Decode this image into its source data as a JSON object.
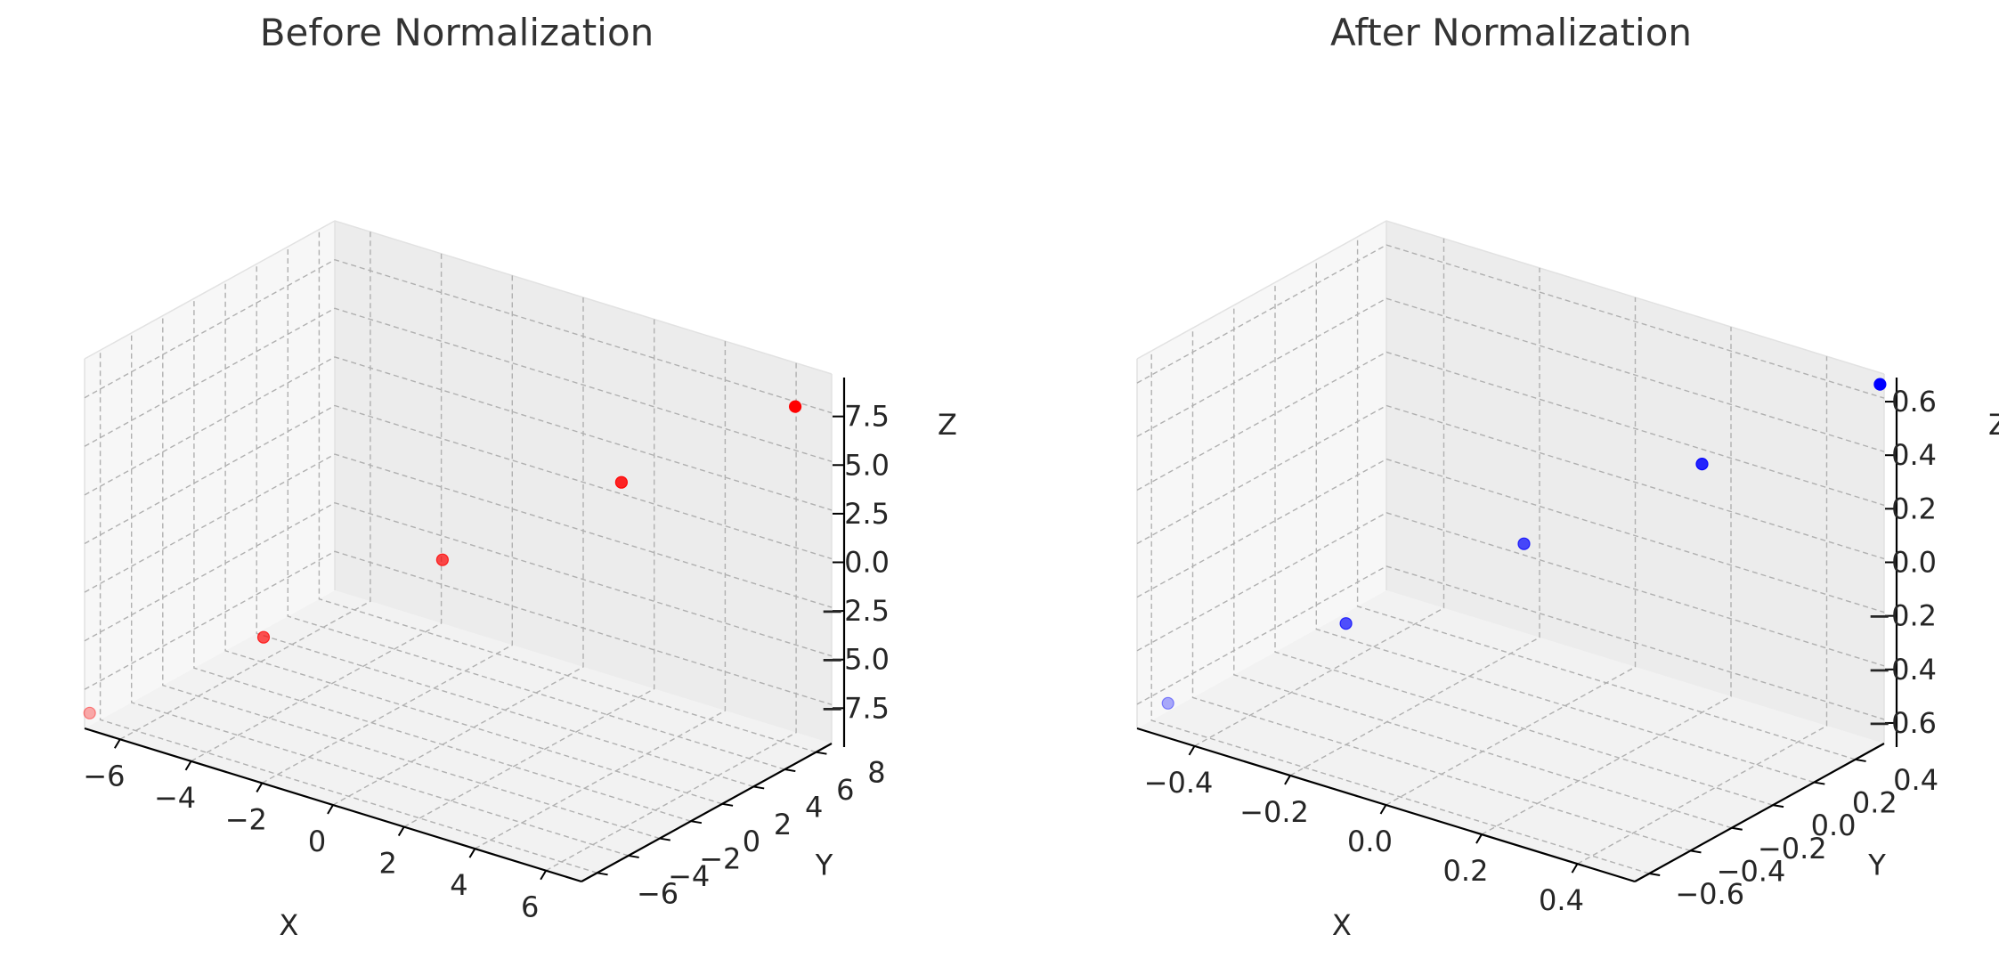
{
  "chart_data": [
    {
      "type": "scatter",
      "title": "Before Normalization",
      "xlabel": "X",
      "ylabel": "Y",
      "zlabel": "Z",
      "projection": "3d",
      "grid": true,
      "marker_color": "#ff0000",
      "x_ticks": [
        "−6",
        "−4",
        "−2",
        "0",
        "2",
        "4",
        "6"
      ],
      "y_ticks": [
        "−6",
        "−4",
        "−2",
        "0",
        "2",
        "4",
        "6",
        "8"
      ],
      "z_ticks": [
        "−7.5",
        "−5.0",
        "−2.5",
        "0.0",
        "2.5",
        "5.0",
        "7.5"
      ],
      "xlim": [
        -7,
        7
      ],
      "ylim": [
        -7,
        9
      ],
      "zlim": [
        -9.5,
        9.5
      ],
      "points": [
        {
          "x": -6.9,
          "y": -6.9,
          "z": -8.7
        },
        {
          "x": -3.5,
          "y": -3.5,
          "z": -4.4
        },
        {
          "x": 0,
          "y": 0,
          "z": 0
        },
        {
          "x": 3.5,
          "y": 3.5,
          "z": 4.4
        },
        {
          "x": 6.9,
          "y": 6.9,
          "z": 8.7
        }
      ]
    },
    {
      "type": "scatter",
      "title": "After Normalization",
      "xlabel": "X",
      "ylabel": "Y",
      "zlabel": "Z",
      "projection": "3d",
      "grid": true,
      "marker_color": "#0000ff",
      "x_ticks": [
        "−0.4",
        "−0.2",
        "0.0",
        "0.2",
        "0.4"
      ],
      "y_ticks": [
        "−0.6",
        "−0.4",
        "−0.2",
        "0.0",
        "0.2",
        "0.4"
      ],
      "z_ticks": [
        "−0.6",
        "−0.4",
        "−0.2",
        "0.0",
        "0.2",
        "0.4",
        "0.6"
      ],
      "xlim": [
        -0.52,
        0.52
      ],
      "ylim": [
        -0.67,
        0.54
      ],
      "zlim": [
        -0.69,
        0.69
      ],
      "points": [
        {
          "x": -0.52,
          "y": -0.52,
          "z": -0.66
        },
        {
          "x": -0.26,
          "y": -0.26,
          "z": -0.33
        },
        {
          "x": 0,
          "y": 0,
          "z": 0
        },
        {
          "x": 0.26,
          "y": 0.26,
          "z": 0.33
        },
        {
          "x": 0.52,
          "y": 0.52,
          "z": 0.66
        }
      ]
    }
  ]
}
